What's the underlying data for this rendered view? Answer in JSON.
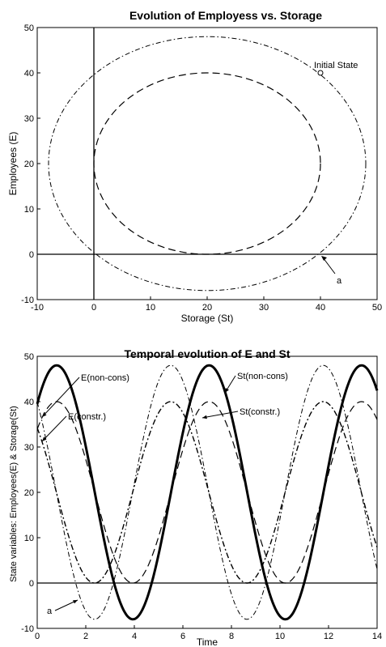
{
  "chart_data": [
    {
      "type": "line",
      "title": "Evolution of Employess vs. Storage",
      "xlabel": "Storage (St)",
      "ylabel": "Employees (E)",
      "xlim": [
        -10,
        50
      ],
      "ylim": [
        -10,
        50
      ],
      "xticks": [
        -10,
        0,
        10,
        20,
        30,
        40,
        50
      ],
      "yticks": [
        -10,
        0,
        10,
        20,
        30,
        40,
        50
      ],
      "grid": false,
      "series": [
        {
          "style": "dash-dot",
          "color": "#000000",
          "shape": "ellipse",
          "center": [
            20,
            20
          ],
          "radius_x": 28,
          "radius_y": 28
        },
        {
          "style": "dashed",
          "color": "#000000",
          "shape": "ellipse",
          "center": [
            20,
            20
          ],
          "radius_x": 20,
          "radius_y": 20
        }
      ],
      "reference_lines": {
        "x": 0,
        "y": 0
      },
      "annotations": [
        {
          "text": "Initial State",
          "point": [
            40,
            40
          ]
        },
        {
          "text": "a",
          "point": [
            40,
            0
          ]
        }
      ]
    },
    {
      "type": "line",
      "title": "Temporal evolution of E and St",
      "xlabel": "Time",
      "ylabel": "State variables: Employees(E) & Storage(St)",
      "xlim": [
        0,
        14
      ],
      "ylim": [
        -10,
        50
      ],
      "xticks": [
        0,
        2,
        4,
        6,
        8,
        10,
        12,
        14
      ],
      "yticks": [
        -10,
        0,
        10,
        20,
        30,
        40,
        50
      ],
      "grid": false,
      "series": [
        {
          "label": "E(non-cons)",
          "style": "solid-thick",
          "color": "#000000",
          "model": "sine",
          "mean": 20,
          "amplitude": 28,
          "period": 6.28,
          "phase_peak_time": 0.8
        },
        {
          "label": "St(non-cons)",
          "style": "dash-dot",
          "color": "#000000",
          "model": "sine",
          "mean": 20,
          "amplitude": 28,
          "period": 6.28,
          "phase_peak_time": 5.5
        },
        {
          "label": "E(constr.)",
          "style": "dashed",
          "color": "#000000",
          "model": "clipped",
          "mean": 20,
          "amplitude": 20,
          "period": 6.28,
          "phase_peak_time": 0.8
        },
        {
          "label": "St(constr.)",
          "style": "dash-dot-thin",
          "color": "#000000",
          "model": "clipped",
          "mean": 20,
          "amplitude": 20,
          "period": 6.28,
          "phase_peak_time": 5.5
        }
      ],
      "reference_lines": {
        "y": 0
      },
      "annotations": [
        {
          "text": "E(non-cons)",
          "point": [
            0,
            38
          ]
        },
        {
          "text": "E(constr.)",
          "point": [
            0,
            29
          ]
        },
        {
          "text": "St(non-cons)",
          "point": [
            6.6,
            38
          ]
        },
        {
          "text": "St(constr.)",
          "point": [
            6.4,
            36
          ]
        },
        {
          "text": "a",
          "point": [
            1.6,
            0
          ]
        }
      ]
    }
  ]
}
